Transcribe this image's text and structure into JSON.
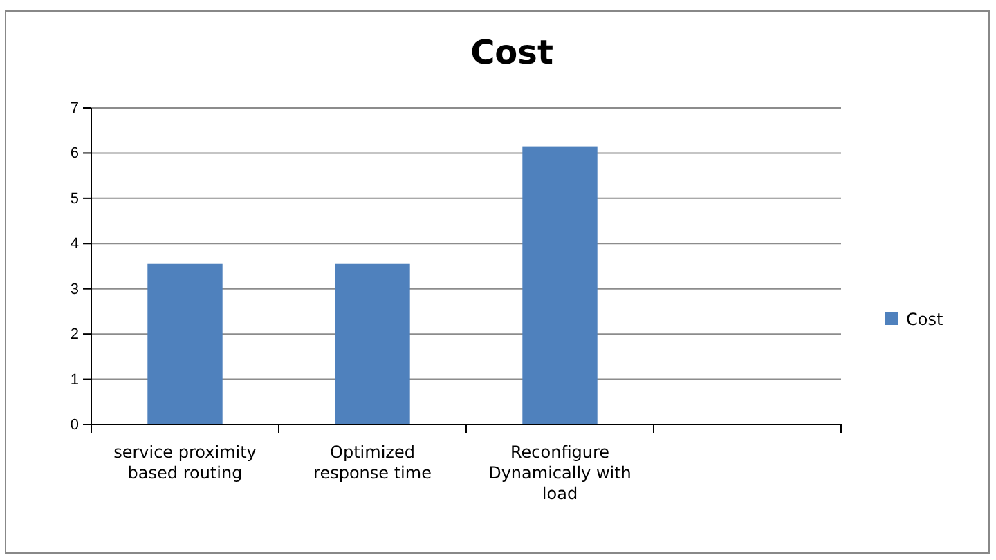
{
  "chart_data": {
    "type": "bar",
    "title": "Cost",
    "categories": [
      "service proximity based routing",
      "Optimized response time",
      "Reconfigure Dynamically with load",
      null
    ],
    "series": [
      {
        "name": "Cost",
        "color": "#4f81bd",
        "values": [
          3.55,
          3.55,
          6.15,
          null
        ]
      }
    ],
    "ylim": [
      0,
      7
    ],
    "yticks": [
      0,
      1,
      2,
      3,
      4,
      5,
      6,
      7
    ],
    "grid": "y",
    "legend": "right"
  }
}
